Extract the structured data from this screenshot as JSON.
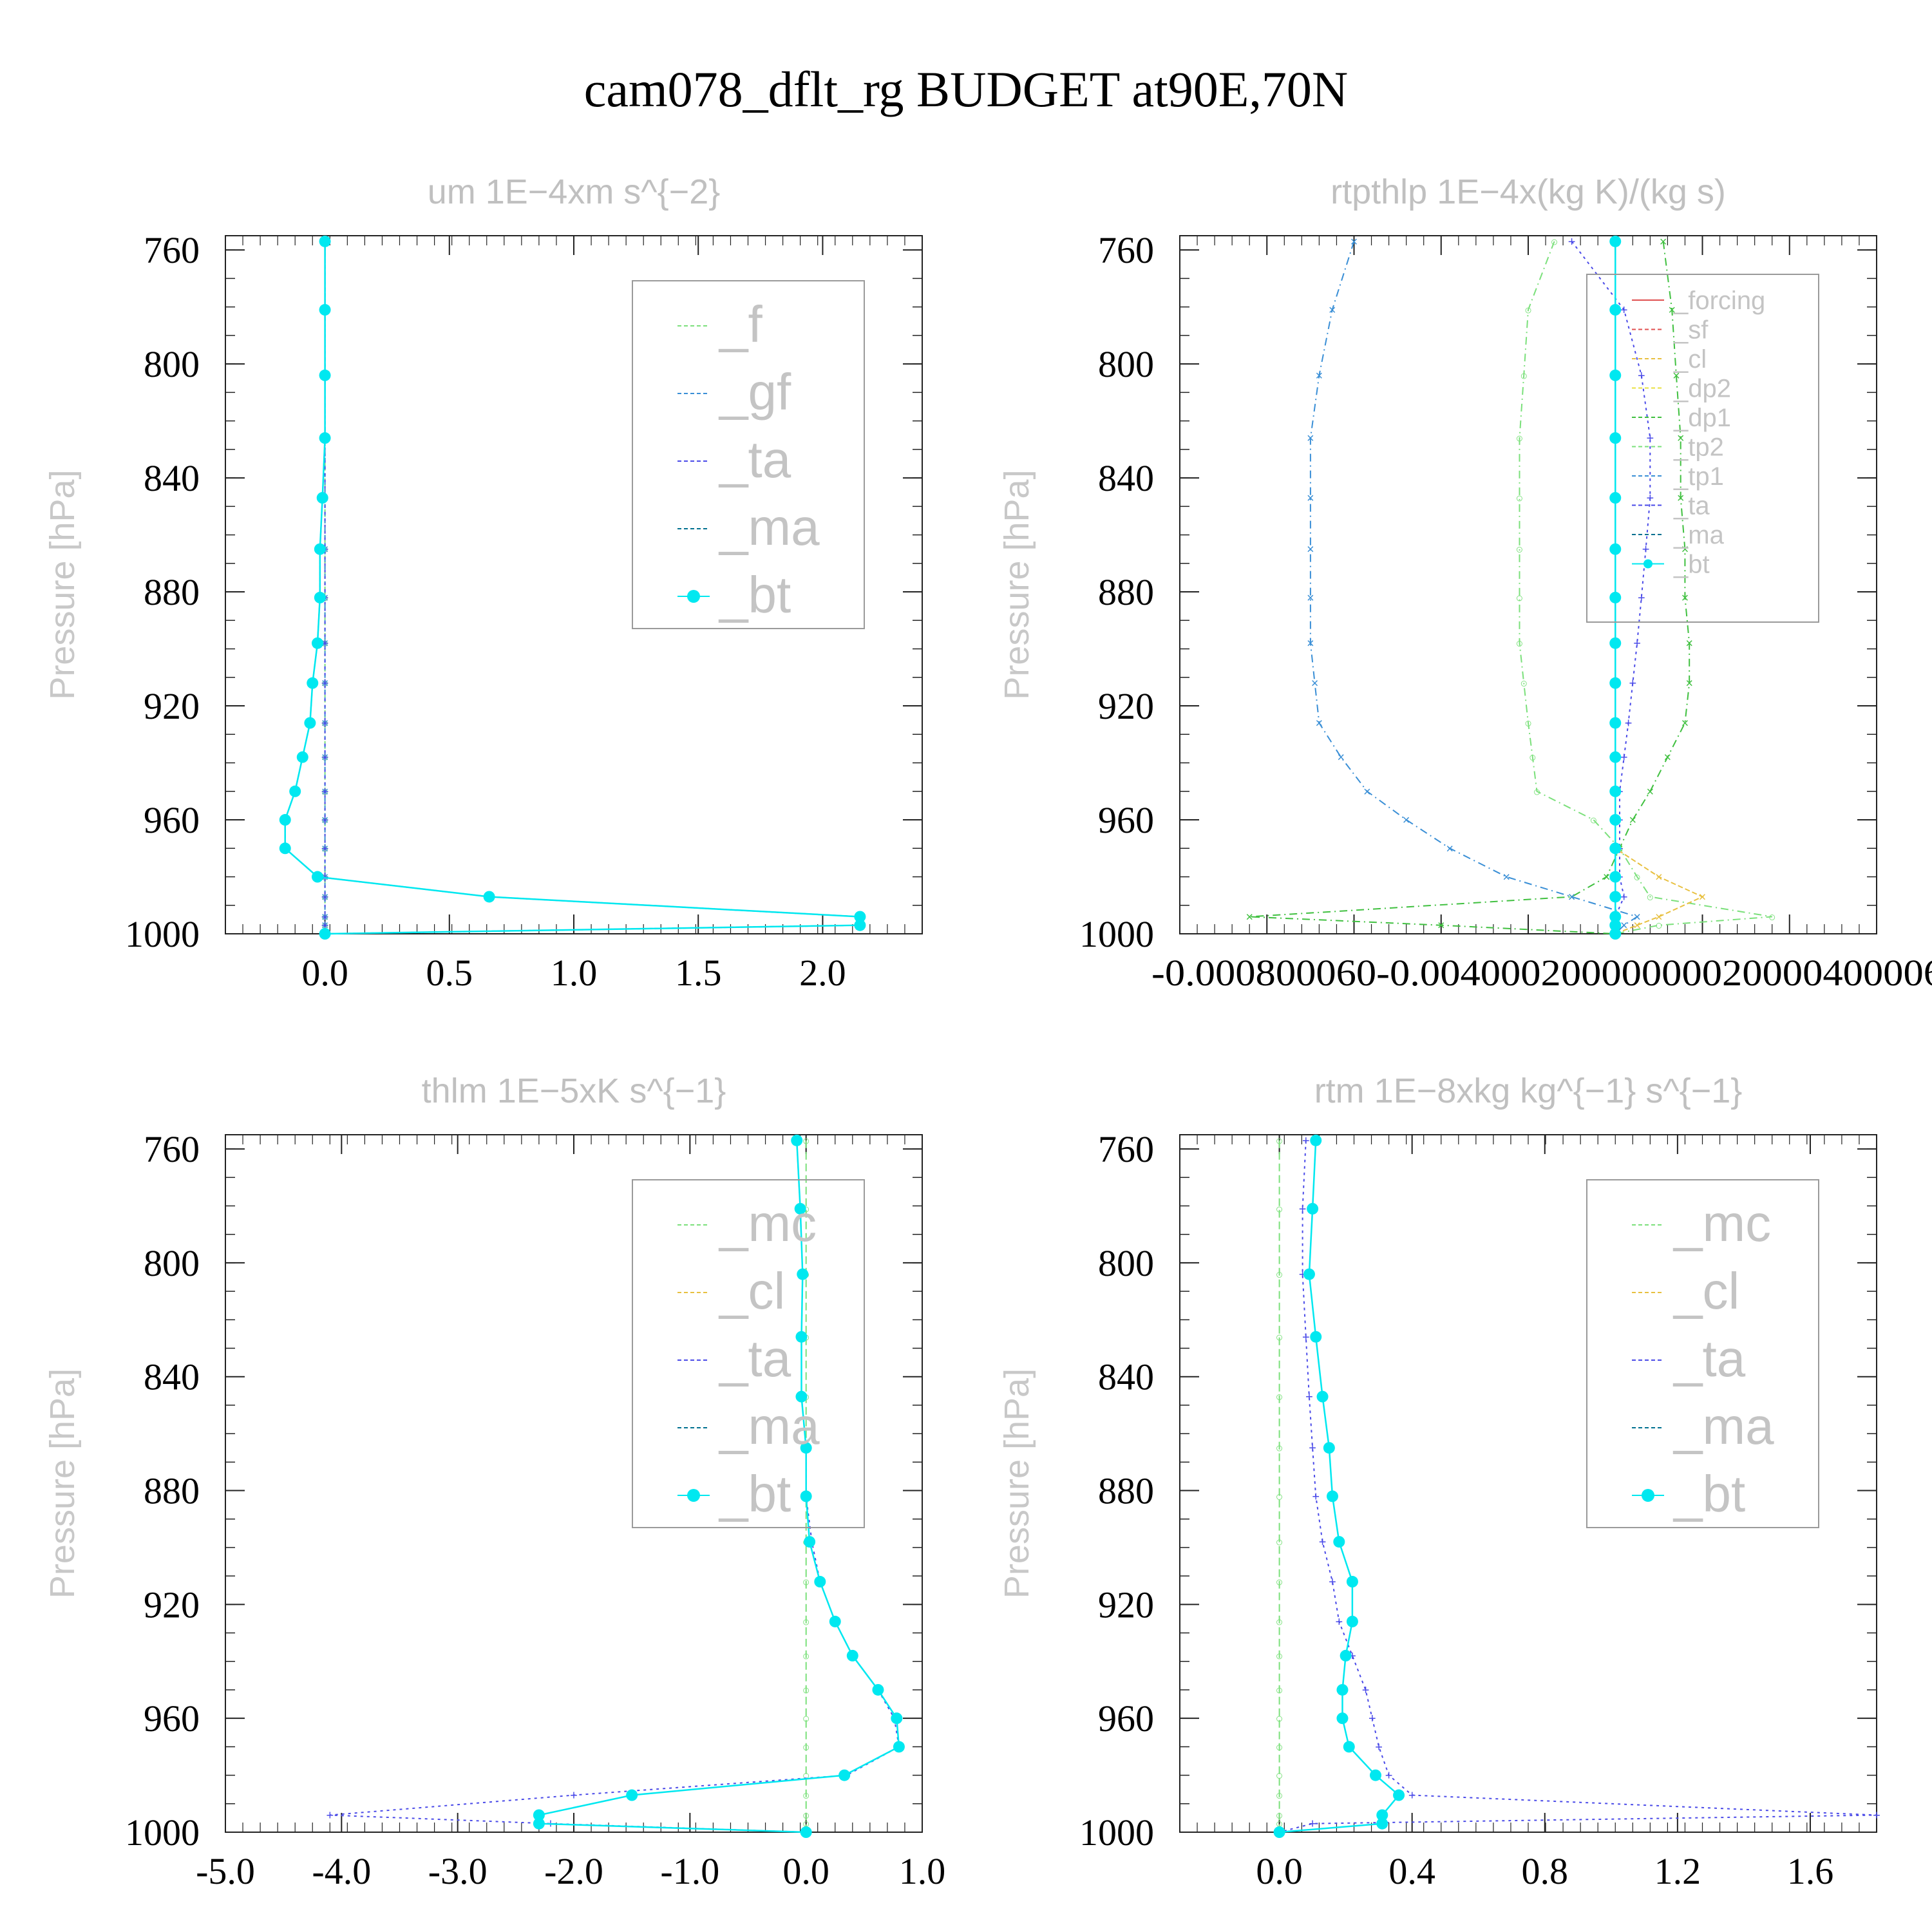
{
  "figure_title": "cam078_dflt_rg  BUDGET at90E,70N",
  "colors": {
    "f": "#7be07b",
    "gf": "#3a8fd6",
    "ta": "#4a4ae8",
    "ma": "#007090",
    "bt": "#00e8f0",
    "forcing": "#e05050",
    "sf": "#e05050",
    "cl": "#e8c040",
    "dp2": "#e8e040",
    "dp1": "#40c040",
    "tp2": "#7be07b",
    "tp1": "#3a8fd6",
    "mc": "#7be07b",
    "cl2": "#3a8fd6"
  },
  "chart_data": [
    {
      "type": "line",
      "title": "um   1E−4xm s^{−2}",
      "ylabel": "Pressure [hPa]",
      "xlabel": "",
      "ylim": [
        1000,
        755
      ],
      "xlim": [
        -0.4,
        2.4
      ],
      "yticks": [
        "760",
        "800",
        "840",
        "880",
        "920",
        "960",
        "1000"
      ],
      "xticks": [
        "0.0",
        "0.5",
        "1.0",
        "1.5",
        "2.0"
      ],
      "legend": [
        "_f",
        "_gf",
        "_ta",
        "_ma",
        "_bt"
      ],
      "legend_position": "top-right",
      "y": [
        757,
        781,
        804,
        826,
        847,
        865,
        882,
        898,
        912,
        926,
        938,
        950,
        960,
        970,
        980,
        987,
        994,
        997,
        1000
      ],
      "series": [
        {
          "name": "_f",
          "values": [
            0,
            0,
            0,
            0,
            0,
            0,
            0,
            0,
            0,
            0,
            0,
            0,
            0,
            0,
            0,
            0,
            0,
            0,
            0
          ]
        },
        {
          "name": "_gf",
          "values": [
            0,
            0,
            0,
            0,
            0,
            0,
            0,
            0,
            0,
            0,
            0,
            0,
            0,
            0,
            0,
            0,
            0,
            0,
            0
          ]
        },
        {
          "name": "_ta",
          "values": [
            0,
            0,
            0,
            0,
            0,
            0,
            0,
            0,
            0,
            0,
            0,
            0,
            0,
            0,
            0,
            0,
            0,
            0,
            0
          ]
        },
        {
          "name": "_ma",
          "values": [
            0,
            0,
            0,
            0,
            -0.01,
            -0.02,
            -0.02,
            -0.03,
            -0.05,
            -0.06,
            -0.09,
            -0.12,
            -0.16,
            -0.16,
            -0.03,
            0.66,
            2.15,
            2.15,
            0
          ]
        },
        {
          "name": "_bt",
          "values": [
            0,
            0,
            0,
            0,
            -0.01,
            -0.02,
            -0.02,
            -0.03,
            -0.05,
            -0.06,
            -0.09,
            -0.12,
            -0.16,
            -0.16,
            -0.03,
            0.66,
            2.15,
            2.15,
            0
          ]
        }
      ]
    },
    {
      "type": "line",
      "title": "rtpthlp   1E−4x(kg K)/(kg s)",
      "ylabel": "Pressure [hPa]",
      "xlabel": "",
      "ylim": [
        1000,
        755
      ],
      "xlim": [
        -0.001,
        0.0006
      ],
      "yticks": [
        "760",
        "800",
        "840",
        "880",
        "920",
        "960",
        "1000"
      ],
      "xticks": [
        "-0.0008",
        "-0.0006",
        "-0.0004",
        "-0.0002",
        "0.0000",
        "0.0002",
        "0.0004",
        "0.0006"
      ],
      "xtick_text": "-0.000800060-0.00400020000000020000400006",
      "legend": [
        "_forcing",
        "_sf",
        "_cl",
        "_dp2",
        "_dp1",
        "_tp2",
        "_tp1",
        "_ta",
        "_ma",
        "_bt"
      ],
      "legend_position": "top-right",
      "y": [
        757,
        781,
        804,
        826,
        847,
        865,
        882,
        898,
        912,
        926,
        938,
        950,
        960,
        970,
        980,
        987,
        994,
        997,
        1000
      ],
      "series": [
        {
          "name": "_dp1",
          "values": [
            0.00011,
            0.00013,
            0.00014,
            0.00015,
            0.00015,
            0.00016,
            0.00016,
            0.00017,
            0.00017,
            0.00016,
            0.00012,
            8e-05,
            4e-05,
            1e-05,
            -2e-05,
            -0.0001,
            -0.00084,
            -0.0004,
            0
          ]
        },
        {
          "name": "_tp2",
          "values": [
            -0.00014,
            -0.0002,
            -0.00021,
            -0.00022,
            -0.00022,
            -0.00022,
            -0.00022,
            -0.00022,
            -0.00021,
            -0.0002,
            -0.00019,
            -0.00018,
            -5e-05,
            1e-05,
            5e-05,
            8e-05,
            0.00036,
            0.0001,
            0
          ]
        },
        {
          "name": "_tp1",
          "values": [
            -0.0006,
            -0.00065,
            -0.00068,
            -0.0007,
            -0.0007,
            -0.0007,
            -0.0007,
            -0.0007,
            -0.00069,
            -0.00068,
            -0.00063,
            -0.00057,
            -0.00048,
            -0.00038,
            -0.00025,
            -0.0001,
            5e-05,
            2e-05,
            0
          ]
        },
        {
          "name": "_ta",
          "values": [
            -0.0001,
            2e-05,
            6e-05,
            8e-05,
            8e-05,
            7e-05,
            6e-05,
            5e-05,
            4e-05,
            3e-05,
            2e-05,
            1e-05,
            1e-05,
            1e-05,
            1e-05,
            2e-05,
            0.0,
            0.0,
            0
          ]
        },
        {
          "name": "_cl",
          "values": [
            0,
            0,
            0,
            0,
            0,
            0,
            0,
            0,
            0,
            0,
            0,
            0,
            0,
            0,
            0.0001,
            0.0002,
            0.0001,
            5e-05,
            0
          ]
        },
        {
          "name": "_forcing",
          "values": [
            0,
            0,
            0,
            0,
            0,
            0,
            0,
            0,
            0,
            0,
            0,
            0,
            0,
            0,
            0,
            0,
            0,
            0,
            0
          ]
        },
        {
          "name": "_bt",
          "values": [
            0,
            0,
            0,
            0,
            0,
            0,
            0,
            0,
            0,
            0,
            0,
            0,
            0,
            0,
            0,
            0,
            0,
            0,
            0
          ]
        }
      ]
    },
    {
      "type": "line",
      "title": "thlm   1E−5xK s^{−1}",
      "ylabel": "Pressure [hPa]",
      "xlabel": "",
      "ylim": [
        1000,
        755
      ],
      "xlim": [
        -5.0,
        1.0
      ],
      "yticks": [
        "760",
        "800",
        "840",
        "880",
        "920",
        "960",
        "1000"
      ],
      "xticks": [
        "-5.0",
        "-4.0",
        "-3.0",
        "-2.0",
        "-1.0",
        "0.0",
        "1.0"
      ],
      "legend": [
        "_mc",
        "_cl",
        "_ta",
        "_ma",
        "_bt"
      ],
      "legend_position": "top-right",
      "y": [
        757,
        781,
        804,
        826,
        847,
        865,
        882,
        898,
        912,
        926,
        938,
        950,
        960,
        970,
        980,
        987,
        994,
        997,
        1000
      ],
      "series": [
        {
          "name": "_mc",
          "values": [
            0,
            0,
            0,
            0,
            0,
            0,
            0,
            0,
            0,
            0,
            0,
            0,
            0,
            0,
            0,
            0,
            0,
            0,
            0
          ]
        },
        {
          "name": "_ta",
          "values": [
            -0.08,
            -0.05,
            -0.03,
            -0.04,
            -0.04,
            0.0,
            0.0,
            0.05,
            0.12,
            0.25,
            0.4,
            0.62,
            0.76,
            0.8,
            0.35,
            -2.0,
            -4.1,
            -2.2,
            0
          ]
        },
        {
          "name": "_bt",
          "values": [
            -0.08,
            -0.05,
            -0.03,
            -0.04,
            -0.04,
            0.0,
            0.0,
            0.03,
            0.12,
            0.25,
            0.4,
            0.62,
            0.78,
            0.8,
            0.33,
            -1.5,
            -2.3,
            -2.3,
            0
          ]
        }
      ]
    },
    {
      "type": "line",
      "title": "rtm   1E−8xkg kg^{−1} s^{−1}",
      "ylabel": "Pressure [hPa]",
      "xlabel": "",
      "ylim": [
        1000,
        755
      ],
      "xlim": [
        -0.3,
        1.8
      ],
      "yticks": [
        "760",
        "800",
        "840",
        "880",
        "920",
        "960",
        "1000"
      ],
      "xticks": [
        "0.0",
        "0.4",
        "0.8",
        "1.2",
        "1.6"
      ],
      "legend": [
        "_mc",
        "_cl",
        "_ta",
        "_ma",
        "_bt"
      ],
      "legend_position": "top-right",
      "y": [
        757,
        781,
        804,
        826,
        847,
        865,
        882,
        898,
        912,
        926,
        938,
        950,
        960,
        970,
        980,
        987,
        994,
        997,
        1000
      ],
      "series": [
        {
          "name": "_mc",
          "values": [
            0,
            0,
            0,
            0,
            0,
            0,
            0,
            0,
            0,
            0,
            0,
            0,
            0,
            0,
            0,
            0,
            0,
            0,
            0
          ]
        },
        {
          "name": "_ta",
          "values": [
            0.08,
            0.07,
            0.07,
            0.08,
            0.09,
            0.1,
            0.11,
            0.13,
            0.16,
            0.18,
            0.22,
            0.26,
            0.28,
            0.3,
            0.33,
            0.4,
            1.8,
            0.1,
            0
          ]
        },
        {
          "name": "_bt",
          "values": [
            0.11,
            0.1,
            0.09,
            0.11,
            0.13,
            0.15,
            0.16,
            0.18,
            0.22,
            0.22,
            0.2,
            0.19,
            0.19,
            0.21,
            0.29,
            0.36,
            0.31,
            0.31,
            0
          ]
        }
      ]
    }
  ]
}
